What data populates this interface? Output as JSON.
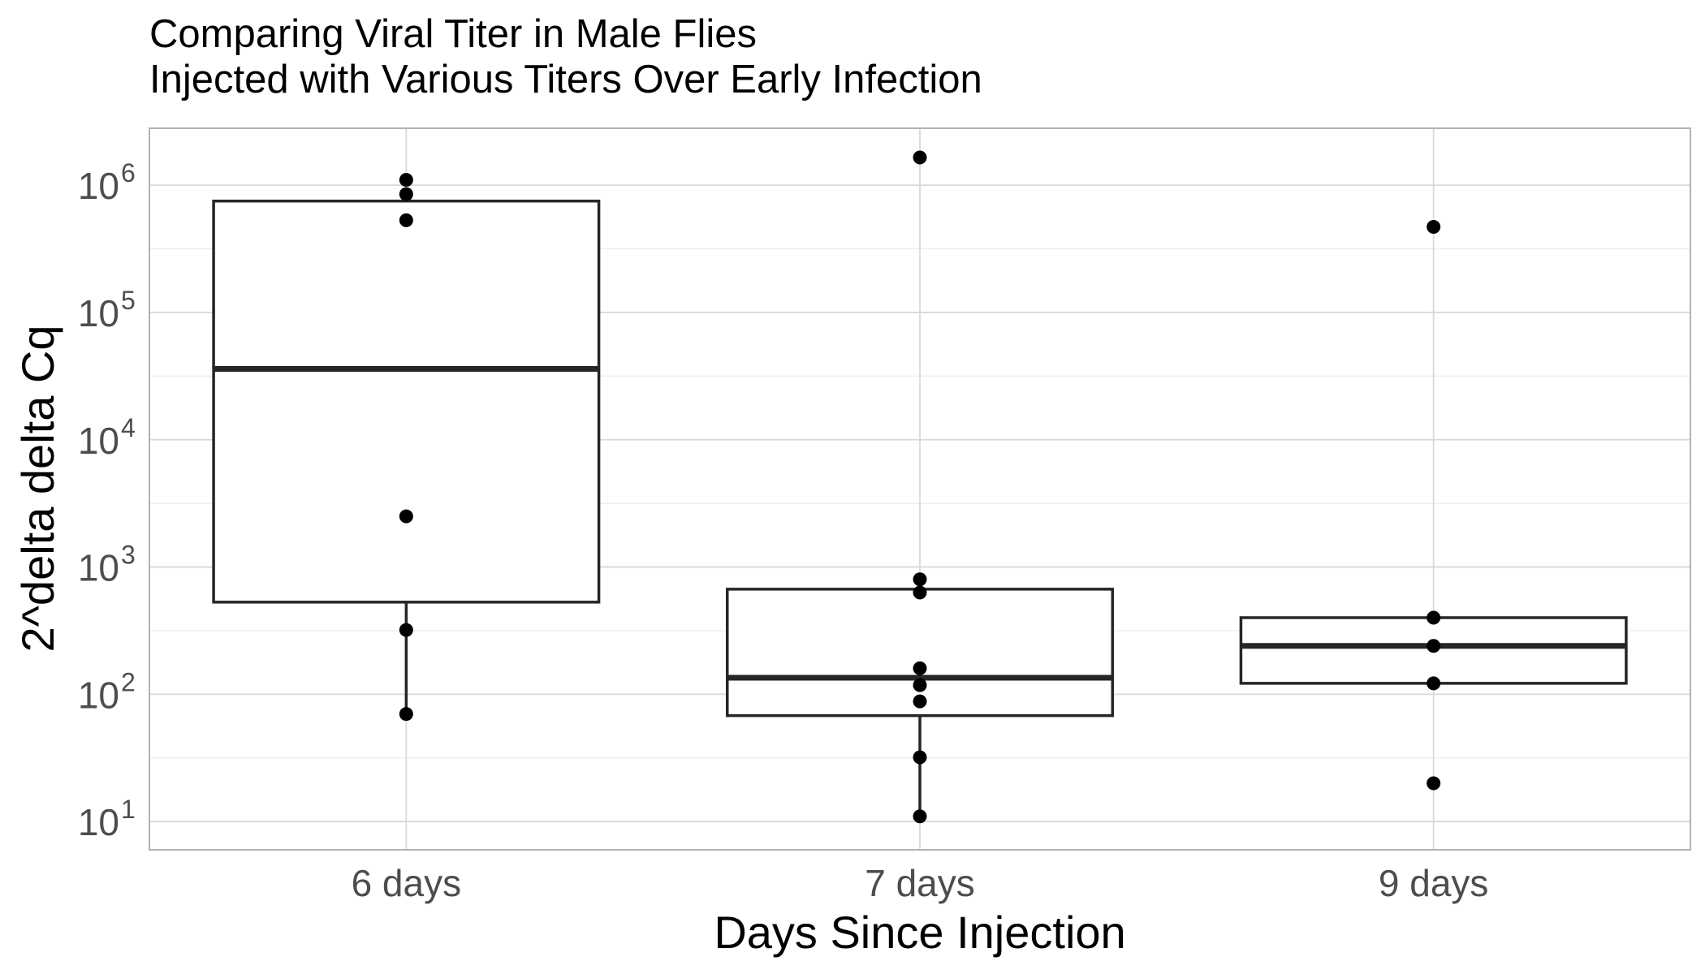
{
  "chart_data": {
    "type": "box",
    "title_lines": [
      "Comparing Viral Titer in Male Flies",
      "Injected with Various Titers Over Early Infection"
    ],
    "xlabel": "Days Since Injection",
    "ylabel": "2^delta delta Cq",
    "y_scale": "log10",
    "ylim": [
      6,
      2800000
    ],
    "y_ticks": [
      10,
      100,
      1000,
      10000,
      100000,
      1000000
    ],
    "y_tick_labels": [
      {
        "base": "10",
        "exp": "1"
      },
      {
        "base": "10",
        "exp": "2"
      },
      {
        "base": "10",
        "exp": "3"
      },
      {
        "base": "10",
        "exp": "4"
      },
      {
        "base": "10",
        "exp": "5"
      },
      {
        "base": "10",
        "exp": "6"
      }
    ],
    "categories": [
      "6 days",
      "7 days",
      "9 days"
    ],
    "boxes": [
      {
        "category": "6 days",
        "whisker_low": 70,
        "q1": 530,
        "median": 36000,
        "q3": 750000,
        "whisker_high": 750000
      },
      {
        "category": "7 days",
        "whisker_low": 11,
        "q1": 68,
        "median": 135,
        "q3": 670,
        "whisker_high": 670
      },
      {
        "category": "9 days",
        "whisker_low": 122,
        "q1": 122,
        "median": 240,
        "q3": 400,
        "whisker_high": 400
      }
    ],
    "points": [
      {
        "category": "6 days",
        "y": 1100000
      },
      {
        "category": "6 days",
        "y": 850000
      },
      {
        "category": "6 days",
        "y": 530000
      },
      {
        "category": "6 days",
        "y": 2500
      },
      {
        "category": "6 days",
        "y": 320
      },
      {
        "category": "6 days",
        "y": 70
      },
      {
        "category": "7 days",
        "y": 1650000
      },
      {
        "category": "7 days",
        "y": 800
      },
      {
        "category": "7 days",
        "y": 630
      },
      {
        "category": "7 days",
        "y": 160
      },
      {
        "category": "7 days",
        "y": 118
      },
      {
        "category": "7 days",
        "y": 88
      },
      {
        "category": "7 days",
        "y": 32
      },
      {
        "category": "7 days",
        "y": 11
      },
      {
        "category": "9 days",
        "y": 470000
      },
      {
        "category": "9 days",
        "y": 400
      },
      {
        "category": "9 days",
        "y": 240
      },
      {
        "category": "9 days",
        "y": 122
      },
      {
        "category": "9 days",
        "y": 20
      }
    ],
    "grid": true,
    "colors": {
      "panel_border": "#b3b3b3",
      "grid_major": "#d9d9d9",
      "grid_minor": "#ececec",
      "box_stroke": "#262626",
      "point": "#000000",
      "tick_text": "#4d4d4d"
    }
  }
}
